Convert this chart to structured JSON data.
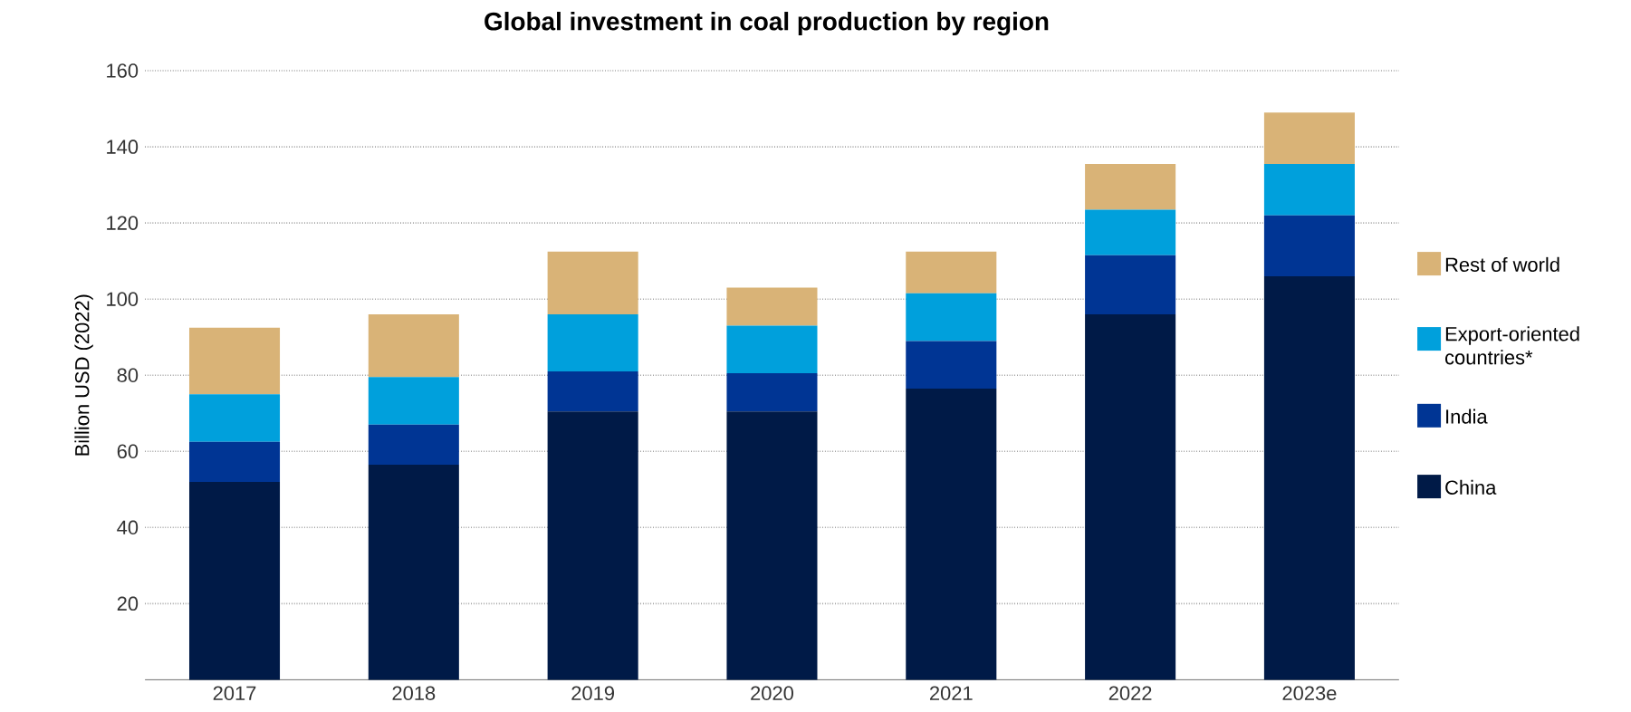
{
  "chart_data": {
    "type": "bar",
    "title": "Global investment in coal production by region",
    "ylabel": "Billion USD (2022)",
    "categories": [
      "2017",
      "2018",
      "2019",
      "2020",
      "2021",
      "2022",
      "2023e"
    ],
    "series": [
      {
        "name": "China",
        "color": "#001a47",
        "values": [
          52,
          56.5,
          70.5,
          70.5,
          76.5,
          96,
          106
        ]
      },
      {
        "name": "India",
        "color": "#003594",
        "values": [
          10.5,
          10.5,
          10.5,
          10,
          12.5,
          15.5,
          16
        ]
      },
      {
        "name": "Export-oriented countries*",
        "color": "#00a0dc",
        "values": [
          12.5,
          12.5,
          15,
          12.5,
          12.5,
          12,
          13.5
        ]
      },
      {
        "name": "Rest of world",
        "color": "#d9b377",
        "values": [
          17.5,
          16.5,
          16.5,
          10,
          11,
          12,
          13.5
        ]
      }
    ],
    "stacked": true,
    "ylim": [
      0,
      160
    ],
    "yticks": [
      20,
      40,
      60,
      80,
      100,
      120,
      140,
      160
    ],
    "grid": "y",
    "legend": "right"
  }
}
